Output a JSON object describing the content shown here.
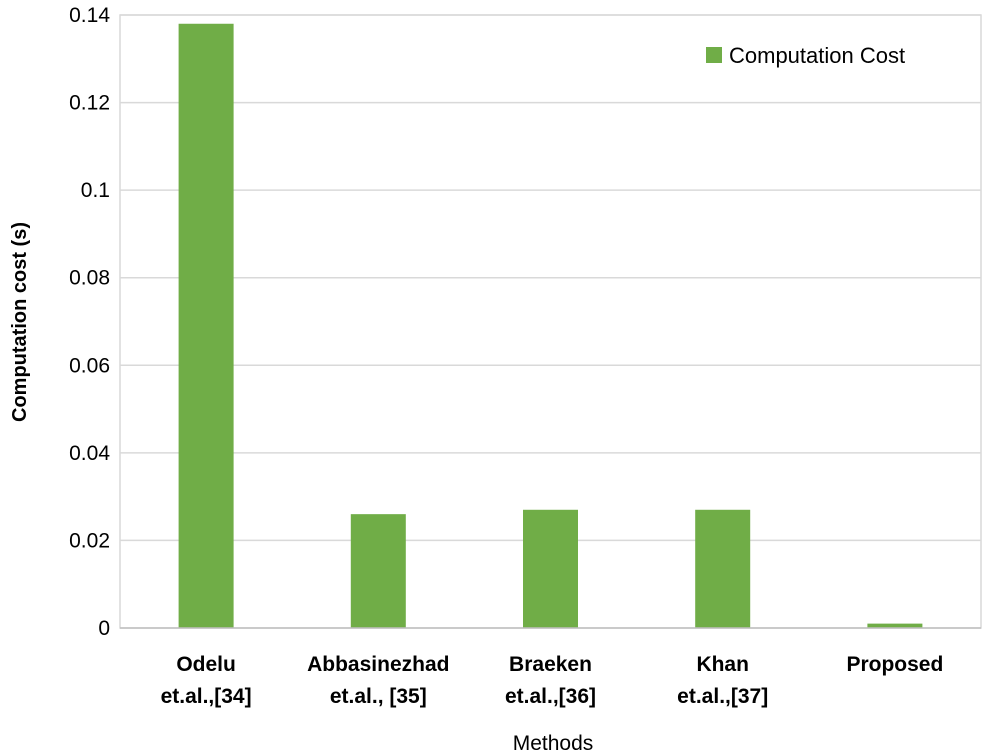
{
  "chart_data": {
    "type": "bar",
    "title": "",
    "categories": [
      [
        "Odelu",
        "et.al.,[34]"
      ],
      [
        "Abbasinezhad",
        "et.al., [35]"
      ],
      [
        "Braeken",
        "et.al.,[36]"
      ],
      [
        "Khan",
        "et.al.,[37]"
      ],
      [
        "Proposed"
      ]
    ],
    "series": [
      {
        "name": "Computation Cost",
        "color": "#70ad47",
        "values": [
          0.138,
          0.026,
          0.027,
          0.027,
          0.001
        ]
      }
    ],
    "xlabel": "Methods",
    "ylabel": "Computation cost (s)",
    "ylim": [
      0,
      0.14
    ],
    "yticks": [
      "0",
      "0.02",
      "0.04",
      "0.06",
      "0.08",
      "0.1",
      "0.12",
      "0.14"
    ],
    "grid": true,
    "legend_position": "top-right"
  }
}
